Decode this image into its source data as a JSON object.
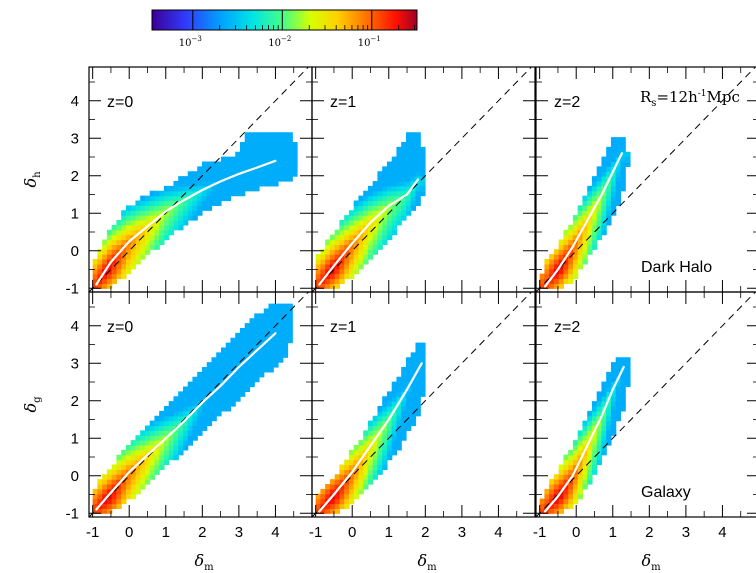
{
  "colorbar": {
    "ticks": [
      {
        "base": "10",
        "exp": "−3",
        "value": 0.001
      },
      {
        "base": "10",
        "exp": "−2",
        "value": 0.01
      },
      {
        "base": "10",
        "exp": "−1",
        "value": 0.1
      }
    ],
    "range": [
      0.00035,
      0.32
    ]
  },
  "x_tick_labels": [
    "-1",
    "0",
    "1",
    "2",
    "3",
    "4"
  ],
  "y_tick_labels": [
    "-1",
    "0",
    "1",
    "2",
    "3",
    "4"
  ],
  "x_axis_label": {
    "symbol": "δ",
    "sub": "m"
  },
  "rows": [
    {
      "ylabel": {
        "symbol": "δ",
        "sub": "h"
      },
      "tracer_label": "Dark Halo"
    },
    {
      "ylabel": {
        "symbol": "δ",
        "sub": "g"
      },
      "tracer_label": "Galaxy"
    }
  ],
  "panel_labels": [
    "z=0",
    "z=1",
    "z=2"
  ],
  "smoothing_label": {
    "main": "R",
    "sub": "s",
    "eq": "=12h",
    "sup": "-1",
    "unit": "Mpc"
  },
  "chart_data": [
    {
      "type": "heatmap",
      "row": "Dark Halo",
      "panel": "z=0",
      "xlim": [
        -1,
        5
      ],
      "ylim": [
        -1,
        5
      ],
      "xlabel": "δm",
      "ylabel": "δh",
      "mean_relation": {
        "x": [
          -0.9,
          -0.5,
          0,
          0.5,
          1,
          1.5,
          2,
          2.5,
          3,
          3.5,
          4
        ],
        "y": [
          -0.9,
          -0.3,
          0.25,
          0.65,
          1.05,
          1.35,
          1.62,
          1.85,
          2.05,
          2.22,
          2.4
        ]
      },
      "envelope": [
        [
          -1,
          -1
        ],
        [
          -0.6,
          -1
        ],
        [
          0,
          -0.6
        ],
        [
          0.5,
          -0.1
        ],
        [
          1.2,
          0.45
        ],
        [
          2,
          1.0
        ],
        [
          2.8,
          1.4
        ],
        [
          3.5,
          1.65
        ],
        [
          4.5,
          1.9
        ],
        [
          4.6,
          2.4
        ],
        [
          4.5,
          3.1
        ],
        [
          3.2,
          3.1
        ],
        [
          3.0,
          2.6
        ],
        [
          2.0,
          2.3
        ],
        [
          1.0,
          1.7
        ],
        [
          0.4,
          1.5
        ],
        [
          -0.2,
          1.0
        ],
        [
          -0.7,
          0.3
        ],
        [
          -1,
          -0.3
        ]
      ],
      "density_peak": {
        "x": -0.5,
        "y": -0.6
      }
    },
    {
      "type": "heatmap",
      "row": "Dark Halo",
      "panel": "z=1",
      "xlim": [
        -1,
        5
      ],
      "ylim": [
        -1,
        5
      ],
      "xlabel": "δm",
      "ylabel": "δh",
      "mean_relation": {
        "x": [
          -0.9,
          -0.5,
          0,
          0.5,
          1,
          1.5,
          1.8
        ],
        "y": [
          -0.9,
          -0.4,
          0.2,
          0.75,
          1.2,
          1.5,
          1.9
        ]
      },
      "envelope": [
        [
          -1,
          -1
        ],
        [
          -0.5,
          -1
        ],
        [
          0,
          -0.7
        ],
        [
          0.5,
          -0.2
        ],
        [
          1,
          0.3
        ],
        [
          1.5,
          0.9
        ],
        [
          2.0,
          1.5
        ],
        [
          2.0,
          2.5
        ],
        [
          1.8,
          3.1
        ],
        [
          1.5,
          3.1
        ],
        [
          1.2,
          2.6
        ],
        [
          0.7,
          2.0
        ],
        [
          0.1,
          1.3
        ],
        [
          -0.5,
          0.5
        ],
        [
          -1,
          -0.2
        ]
      ],
      "density_peak": {
        "x": -0.5,
        "y": -0.55
      }
    },
    {
      "type": "heatmap",
      "row": "Dark Halo",
      "panel": "z=2",
      "xlim": [
        -1,
        5
      ],
      "ylim": [
        -1,
        5
      ],
      "xlabel": "δm",
      "ylabel": "δh",
      "mean_relation": {
        "x": [
          -0.85,
          -0.5,
          -0.1,
          0.3,
          0.7,
          1.0,
          1.25
        ],
        "y": [
          -0.95,
          -0.5,
          0.1,
          0.8,
          1.5,
          2.1,
          2.6
        ]
      },
      "envelope": [
        [
          -1,
          -1
        ],
        [
          -0.4,
          -1
        ],
        [
          0,
          -0.7
        ],
        [
          0.4,
          -0.1
        ],
        [
          0.9,
          0.7
        ],
        [
          1.3,
          1.6
        ],
        [
          1.45,
          2.5
        ],
        [
          1.3,
          3.0
        ],
        [
          1.0,
          3.0
        ],
        [
          0.6,
          2.2
        ],
        [
          0.1,
          1.2
        ],
        [
          -0.4,
          0.3
        ],
        [
          -0.9,
          -0.4
        ]
      ],
      "density_peak": {
        "x": -0.45,
        "y": -0.5
      }
    },
    {
      "type": "heatmap",
      "row": "Galaxy",
      "panel": "z=0",
      "xlim": [
        -1,
        5
      ],
      "ylim": [
        -1,
        5
      ],
      "xlabel": "δm",
      "ylabel": "δg",
      "mean_relation": {
        "x": [
          -0.9,
          -0.5,
          0,
          0.5,
          1,
          1.5,
          2,
          2.5,
          3,
          3.5,
          4
        ],
        "y": [
          -0.9,
          -0.45,
          0.1,
          0.55,
          1.0,
          1.45,
          1.95,
          2.4,
          2.9,
          3.35,
          3.8
        ]
      },
      "envelope": [
        [
          -1,
          -1
        ],
        [
          -0.6,
          -1
        ],
        [
          0,
          -0.65
        ],
        [
          0.8,
          0.05
        ],
        [
          1.5,
          0.7
        ],
        [
          2.5,
          1.6
        ],
        [
          3.5,
          2.5
        ],
        [
          4.3,
          3.2
        ],
        [
          4.5,
          3.9
        ],
        [
          4.5,
          4.6
        ],
        [
          4.0,
          4.6
        ],
        [
          3.3,
          4.2
        ],
        [
          2.5,
          3.4
        ],
        [
          1.5,
          2.3
        ],
        [
          0.6,
          1.4
        ],
        [
          -0.2,
          0.6
        ],
        [
          -0.8,
          -0.1
        ],
        [
          -1,
          -0.4
        ]
      ],
      "density_peak": {
        "x": -0.5,
        "y": -0.65
      }
    },
    {
      "type": "heatmap",
      "row": "Galaxy",
      "panel": "z=1",
      "xlim": [
        -1,
        5
      ],
      "ylim": [
        -1,
        5
      ],
      "xlabel": "δm",
      "ylabel": "δg",
      "mean_relation": {
        "x": [
          -0.9,
          -0.5,
          0,
          0.5,
          1,
          1.5,
          1.9
        ],
        "y": [
          -0.95,
          -0.5,
          0.1,
          0.8,
          1.5,
          2.3,
          3.0
        ]
      },
      "envelope": [
        [
          -1,
          -1
        ],
        [
          -0.5,
          -1
        ],
        [
          0,
          -0.75
        ],
        [
          0.6,
          -0.1
        ],
        [
          1.2,
          0.6
        ],
        [
          1.8,
          1.6
        ],
        [
          2.05,
          2.6
        ],
        [
          2.05,
          3.5
        ],
        [
          1.8,
          3.5
        ],
        [
          1.4,
          2.9
        ],
        [
          0.9,
          2.1
        ],
        [
          0.3,
          1.1
        ],
        [
          -0.4,
          0.1
        ],
        [
          -1,
          -0.5
        ]
      ],
      "density_peak": {
        "x": -0.5,
        "y": -0.6
      }
    },
    {
      "type": "heatmap",
      "row": "Galaxy",
      "panel": "z=2",
      "xlim": [
        -1,
        5
      ],
      "ylim": [
        -1,
        5
      ],
      "xlabel": "δm",
      "ylabel": "δg",
      "mean_relation": {
        "x": [
          -0.85,
          -0.5,
          -0.1,
          0.3,
          0.7,
          1.0,
          1.3
        ],
        "y": [
          -0.95,
          -0.55,
          0.0,
          0.8,
          1.6,
          2.3,
          2.9
        ]
      },
      "envelope": [
        [
          -1,
          -1
        ],
        [
          -0.4,
          -1
        ],
        [
          0,
          -0.75
        ],
        [
          0.4,
          -0.15
        ],
        [
          0.9,
          0.8
        ],
        [
          1.3,
          1.8
        ],
        [
          1.45,
          2.7
        ],
        [
          1.45,
          3.2
        ],
        [
          1.1,
          3.2
        ],
        [
          0.7,
          2.4
        ],
        [
          0.2,
          1.4
        ],
        [
          -0.4,
          0.3
        ],
        [
          -0.9,
          -0.45
        ]
      ],
      "density_peak": {
        "x": -0.45,
        "y": -0.55
      }
    }
  ],
  "reference_line": {
    "style": "dashed",
    "slope": 1,
    "intercept": 0
  },
  "colors": {
    "axis": "#000000",
    "mean_line": "#ffffff",
    "reference_line": "#000000"
  }
}
